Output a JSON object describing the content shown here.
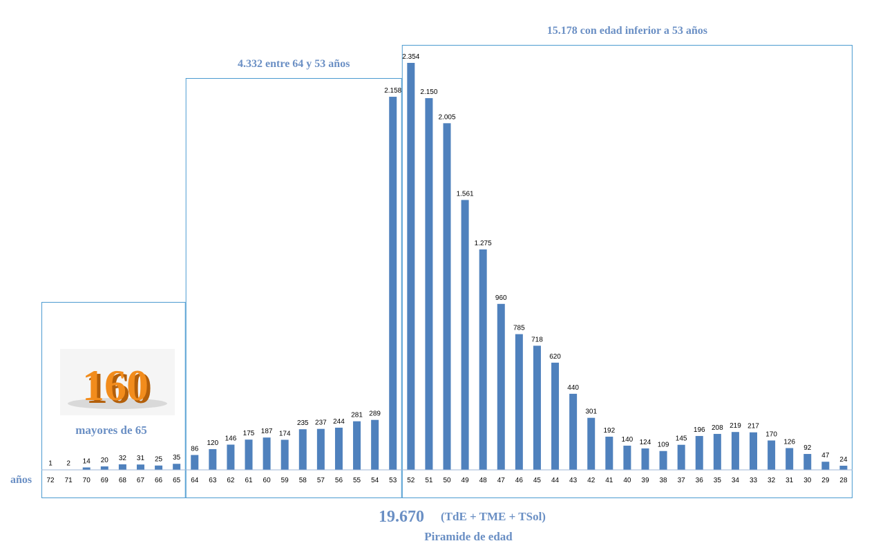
{
  "colors": {
    "bar": "#4f81bd",
    "text_accent": "#6a8fc4",
    "box": "#4a9ad0",
    "badge": "#f28c1c"
  },
  "badge": {
    "text": "160",
    "caption": "mayores de 65",
    "icon": "orange-3d-number-image"
  },
  "groups": [
    {
      "title": "",
      "from_age": 72,
      "to_age": 65
    },
    {
      "title": "4.332 entre 64 y 53 años",
      "from_age": 64,
      "to_age": 53
    },
    {
      "title": "15.178 con edad inferior a 53 años",
      "from_age": 52,
      "to_age": 28
    }
  ],
  "axis": {
    "label": "años"
  },
  "footer": {
    "total": "19.670",
    "total_note": "(TdE + TME + TSol)",
    "subtitle": "Piramide de edad"
  },
  "chart_data": {
    "type": "bar",
    "title": "Piramide de edad",
    "xlabel": "años",
    "ylabel": "",
    "categories": [
      "72",
      "71",
      "70",
      "69",
      "68",
      "67",
      "66",
      "65",
      "64",
      "63",
      "62",
      "61",
      "60",
      "59",
      "58",
      "57",
      "56",
      "55",
      "54",
      "53",
      "52",
      "51",
      "50",
      "49",
      "48",
      "47",
      "46",
      "45",
      "44",
      "43",
      "42",
      "41",
      "40",
      "39",
      "38",
      "37",
      "36",
      "35",
      "34",
      "33",
      "32",
      "31",
      "30",
      "29",
      "28"
    ],
    "values": [
      1,
      2,
      14,
      20,
      32,
      31,
      25,
      35,
      86,
      120,
      146,
      175,
      187,
      174,
      235,
      237,
      244,
      281,
      289,
      2158,
      2354,
      2150,
      2005,
      1561,
      1275,
      960,
      785,
      718,
      620,
      440,
      301,
      192,
      140,
      124,
      109,
      145,
      196,
      208,
      219,
      217,
      170,
      126,
      92,
      47,
      24
    ],
    "value_labels": [
      "1",
      "2",
      "14",
      "20",
      "32",
      "31",
      "25",
      "35",
      "86",
      "120",
      "146",
      "175",
      "187",
      "174",
      "235",
      "237",
      "244",
      "281",
      "289",
      "2.158",
      "2.354",
      "2.150",
      "2.005",
      "1.561",
      "1.275",
      "960",
      "785",
      "718",
      "620",
      "440",
      "301",
      "192",
      "140",
      "124",
      "109",
      "145",
      "196",
      "208",
      "219",
      "217",
      "170",
      "126",
      "92",
      "47",
      "24"
    ],
    "ylim": [
      0,
      2354
    ],
    "grid": false,
    "legend": "none"
  }
}
